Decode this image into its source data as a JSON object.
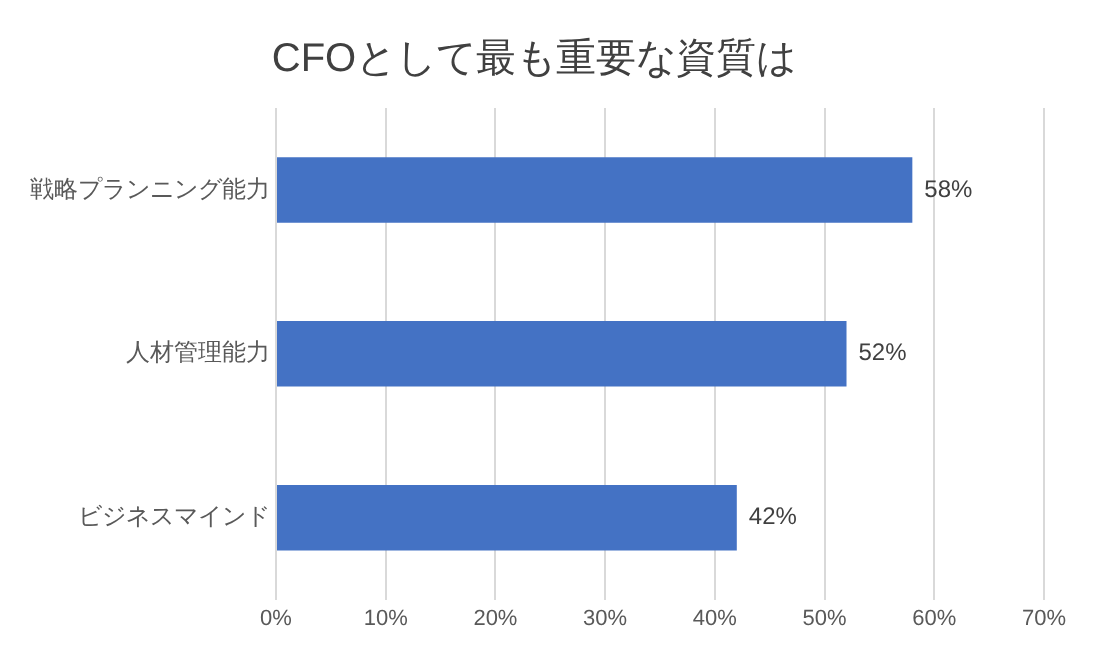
{
  "chart_data": {
    "type": "bar",
    "title": "CFOとして最も重要な資質は",
    "orientation": "horizontal",
    "categories": [
      "戦略プランニング能力",
      "人材管理能力",
      "ビジネスマインド"
    ],
    "values": [
      58,
      52,
      42
    ],
    "value_labels": [
      "58%",
      "52%",
      "42%"
    ],
    "color": "#4472c4",
    "xlim": [
      0,
      70
    ],
    "xticks": [
      {
        "value": 0,
        "label": "0%"
      },
      {
        "value": 10,
        "label": "10%"
      },
      {
        "value": 20,
        "label": "20%"
      },
      {
        "value": 30,
        "label": "30%"
      },
      {
        "value": 40,
        "label": "40%"
      },
      {
        "value": 50,
        "label": "50%"
      },
      {
        "value": 60,
        "label": "60%"
      },
      {
        "value": 70,
        "label": "70%"
      }
    ],
    "grid": "x",
    "legend": false
  }
}
